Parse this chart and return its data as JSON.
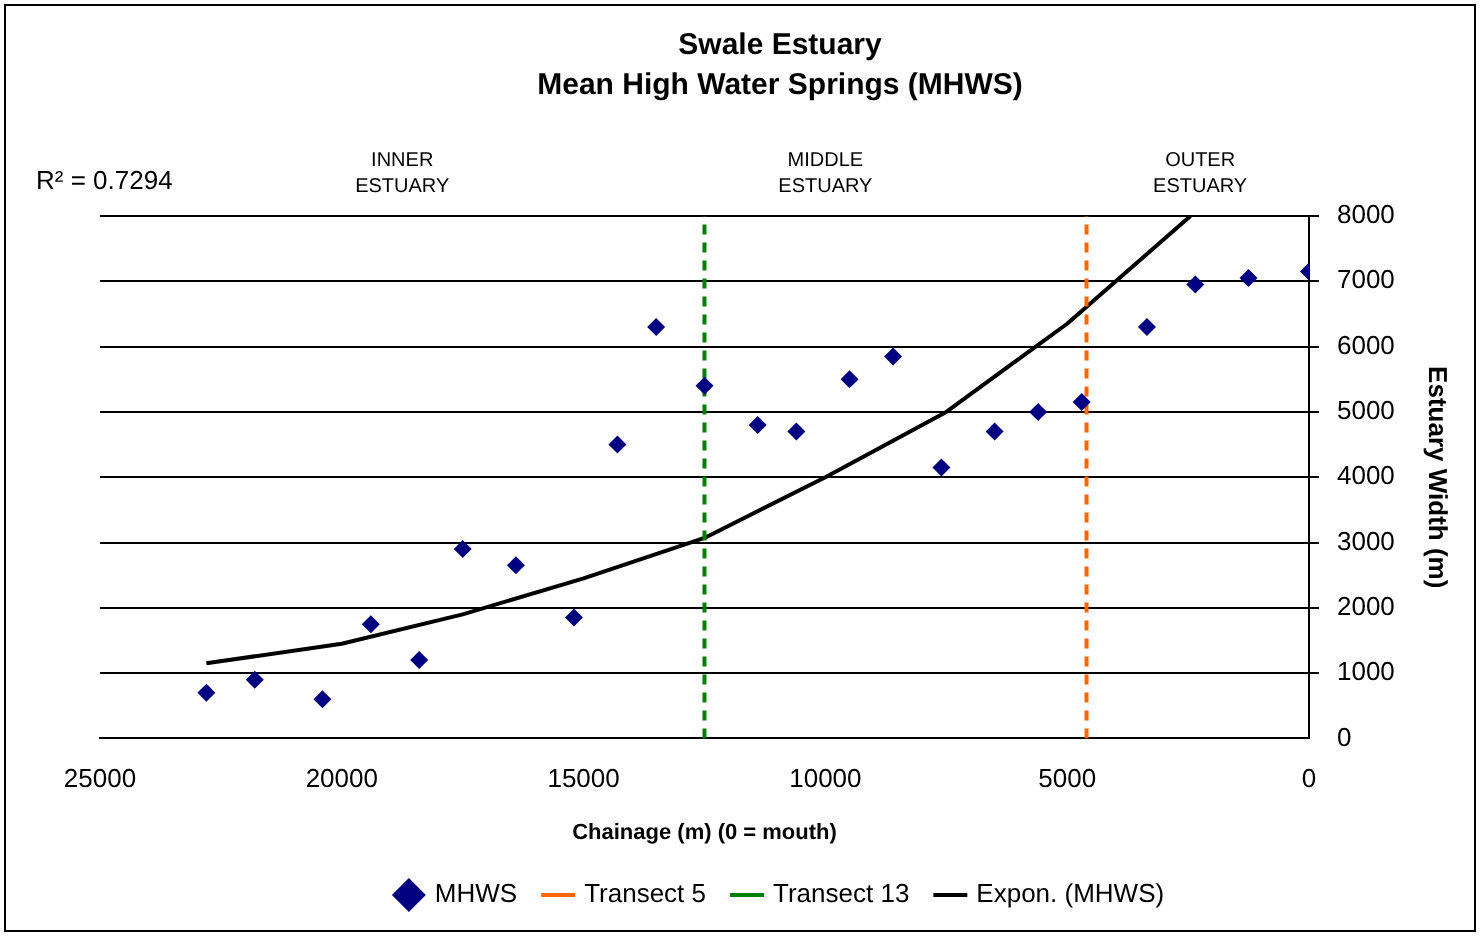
{
  "chart_data": {
    "type": "scatter",
    "title": "Swale Estuary",
    "subtitle": "Mean High Water Springs (MHWS)",
    "xlabel": "Chainage (m) (0 = mouth)",
    "ylabel": "Estuary Width (m)",
    "xlim": [
      25000,
      0
    ],
    "xticks": [
      25000,
      20000,
      15000,
      10000,
      5000,
      0
    ],
    "ylim": [
      0,
      8000
    ],
    "yticks": [
      0,
      1000,
      2000,
      3000,
      4000,
      5000,
      6000,
      7000,
      8000
    ],
    "grid": "y",
    "legend": "bottom",
    "series": [
      {
        "name": "MHWS",
        "type": "scatter",
        "marker": "diamond",
        "color": "#000080",
        "x": [
          22800,
          21800,
          20400,
          19400,
          18400,
          17500,
          16400,
          15200,
          14300,
          13500,
          12500,
          11400,
          10600,
          9500,
          8600,
          7600,
          6500,
          5600,
          4700,
          3350,
          2350,
          1250,
          0
        ],
        "values": [
          700,
          900,
          600,
          1750,
          1200,
          2900,
          2650,
          1850,
          4500,
          6300,
          5400,
          4800,
          4700,
          5500,
          5850,
          4150,
          4700,
          5000,
          5150,
          6300,
          6950,
          7050,
          7150
        ]
      },
      {
        "name": "Expon. (MHWS)",
        "type": "line",
        "marker": "none",
        "line_style": "solid",
        "color": "#000000",
        "x": [
          22800,
          20000,
          17500,
          15000,
          12500,
          10000,
          7500,
          5000,
          2450
        ],
        "values": [
          1150,
          1450,
          1900,
          2450,
          3070,
          4000,
          5000,
          6350,
          8000
        ]
      }
    ],
    "ref_lines": [
      {
        "axis": "x",
        "value": 4600,
        "label": "Transect 5",
        "color": "#ff6600",
        "line_style": "dashed"
      },
      {
        "axis": "x",
        "value": 12500,
        "label": "Transect 13",
        "color": "#008000",
        "line_style": "dashed"
      }
    ],
    "annotations": [
      "R² = 0.7294",
      "INNER ESTUARY",
      "MIDDLE ESTUARY",
      "OUTER ESTUARY"
    ]
  }
}
